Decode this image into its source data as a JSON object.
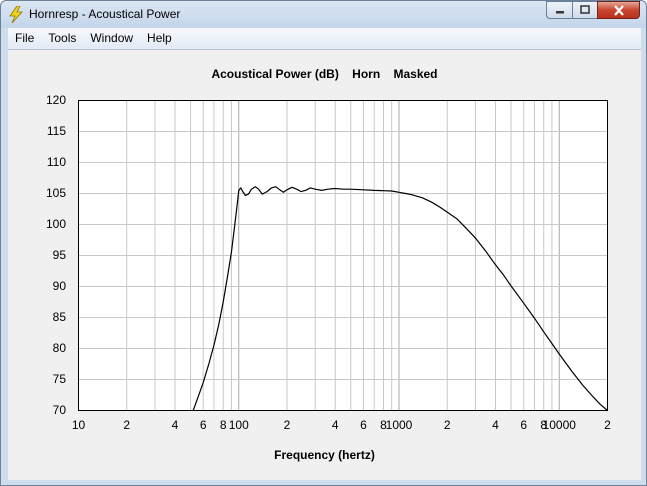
{
  "window": {
    "title": "Hornresp - Acoustical Power",
    "icon": "lightning-bolt-icon"
  },
  "caption_buttons": [
    "minimize-icon",
    "maximize-icon",
    "close-icon"
  ],
  "menu": [
    {
      "label": "File"
    },
    {
      "label": "Tools"
    },
    {
      "label": "Window"
    },
    {
      "label": "Help"
    }
  ],
  "colors": {
    "plot_bg": "#ffffff",
    "grid": "#c8c8c8",
    "curve": "#000000",
    "client_bg": "#f0f0f0"
  },
  "chart_data": {
    "type": "line",
    "title": "Acoustical Power (dB)    Horn    Masked",
    "xlabel": "Frequency (hertz)",
    "ylabel": "",
    "xscale": "log",
    "xlim": [
      10,
      20000
    ],
    "ylim": [
      70,
      120
    ],
    "grid": true,
    "yticks": [
      "120",
      "115",
      "110",
      "105",
      "100",
      "95",
      "90",
      "85",
      "80",
      "75",
      "70"
    ],
    "xticks": [
      {
        "value": 10,
        "label": "10"
      },
      {
        "value": 20,
        "label": "2"
      },
      {
        "value": 40,
        "label": "4"
      },
      {
        "value": 60,
        "label": "6"
      },
      {
        "value": 80,
        "label": "8"
      },
      {
        "value": 100,
        "label": "100"
      },
      {
        "value": 200,
        "label": "2"
      },
      {
        "value": 400,
        "label": "4"
      },
      {
        "value": 600,
        "label": "6"
      },
      {
        "value": 800,
        "label": "8"
      },
      {
        "value": 1000,
        "label": "1000"
      },
      {
        "value": 2000,
        "label": "2"
      },
      {
        "value": 4000,
        "label": "4"
      },
      {
        "value": 6000,
        "label": "6"
      },
      {
        "value": 8000,
        "label": "8"
      },
      {
        "value": 10000,
        "label": "10000"
      },
      {
        "value": 20000,
        "label": "2"
      }
    ],
    "series": [
      {
        "x": [
          52,
          56,
          60,
          65,
          70,
          75,
          80,
          85,
          90,
          95,
          100,
          103,
          106,
          110,
          115,
          120,
          127,
          133,
          140,
          150,
          160,
          170,
          180,
          190,
          200,
          215,
          230,
          245,
          260,
          280,
          300,
          330,
          360,
          400,
          450,
          500,
          600,
          700,
          800,
          900,
          1000,
          1100,
          1200,
          1400,
          1600,
          1800,
          2000,
          2300,
          2600,
          3000,
          3500,
          4000,
          4500,
          5000,
          6000,
          7000,
          8000,
          9000,
          10000,
          12000,
          14000,
          16000,
          18000,
          20000
        ],
        "y": [
          70,
          72.3,
          74.5,
          77.5,
          80.5,
          83.8,
          87.5,
          91.5,
          95.5,
          100.5,
          105.5,
          105.9,
          105.3,
          104.7,
          104.9,
          105.7,
          106.1,
          105.7,
          104.9,
          105.3,
          105.9,
          106.1,
          105.6,
          105.2,
          105.6,
          106.0,
          105.7,
          105.3,
          105.5,
          105.9,
          105.7,
          105.5,
          105.7,
          105.8,
          105.7,
          105.7,
          105.6,
          105.5,
          105.45,
          105.4,
          105.2,
          105.0,
          104.8,
          104.3,
          103.6,
          102.8,
          102.0,
          100.9,
          99.5,
          97.8,
          95.6,
          93.5,
          91.8,
          90.1,
          87.3,
          84.9,
          82.7,
          80.8,
          79.1,
          76.3,
          74.1,
          72.4,
          71.0,
          69.6
        ]
      }
    ]
  }
}
